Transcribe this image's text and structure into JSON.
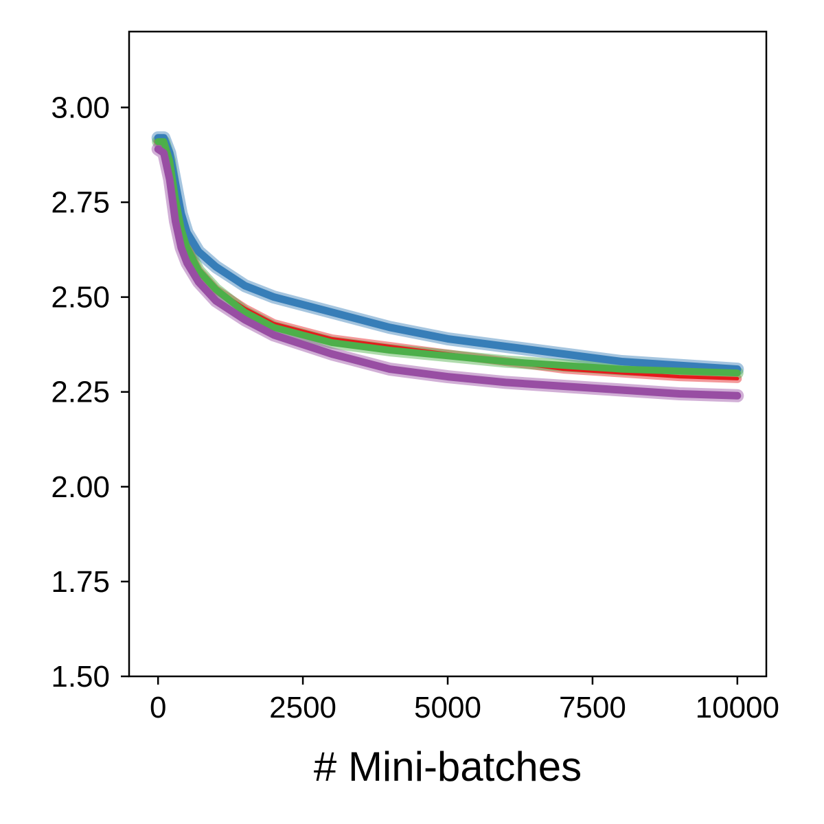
{
  "chart_data": {
    "type": "line",
    "title": "",
    "xlabel": "# Mini-batches",
    "ylabel": "",
    "xlim": [
      -500,
      10500
    ],
    "ylim": [
      1.5,
      3.2
    ],
    "xticks": [
      0,
      2500,
      5000,
      7500,
      10000
    ],
    "xtick_labels": [
      "0",
      "2500",
      "5000",
      "7500",
      "10000"
    ],
    "yticks": [
      1.5,
      1.75,
      2.0,
      2.25,
      2.5,
      2.75,
      3.0
    ],
    "ytick_labels": [
      "1.50",
      "1.75",
      "2.00",
      "2.25",
      "2.50",
      "2.75",
      "3.00"
    ],
    "grid": false,
    "legend": "none",
    "x": [
      0,
      100,
      200,
      300,
      400,
      500,
      700,
      1000,
      1500,
      2000,
      3000,
      4000,
      5000,
      6000,
      7000,
      8000,
      9000,
      10000
    ],
    "series": [
      {
        "color": "#377eb8",
        "values": [
          2.92,
          2.92,
          2.88,
          2.8,
          2.72,
          2.67,
          2.62,
          2.58,
          2.53,
          2.5,
          2.46,
          2.42,
          2.39,
          2.37,
          2.35,
          2.33,
          2.32,
          2.31
        ]
      },
      {
        "color": "#e41a1c",
        "values": [
          2.91,
          2.91,
          2.86,
          2.76,
          2.68,
          2.63,
          2.57,
          2.52,
          2.47,
          2.43,
          2.39,
          2.37,
          2.35,
          2.33,
          2.31,
          2.3,
          2.29,
          2.285
        ]
      },
      {
        "color": "#4daf4a",
        "values": [
          2.91,
          2.91,
          2.86,
          2.76,
          2.68,
          2.63,
          2.57,
          2.52,
          2.46,
          2.42,
          2.38,
          2.36,
          2.345,
          2.33,
          2.32,
          2.31,
          2.305,
          2.3
        ]
      },
      {
        "color": "#984ea3",
        "values": [
          2.89,
          2.88,
          2.81,
          2.7,
          2.63,
          2.59,
          2.54,
          2.49,
          2.44,
          2.4,
          2.35,
          2.31,
          2.29,
          2.275,
          2.265,
          2.255,
          2.245,
          2.24
        ]
      }
    ]
  }
}
